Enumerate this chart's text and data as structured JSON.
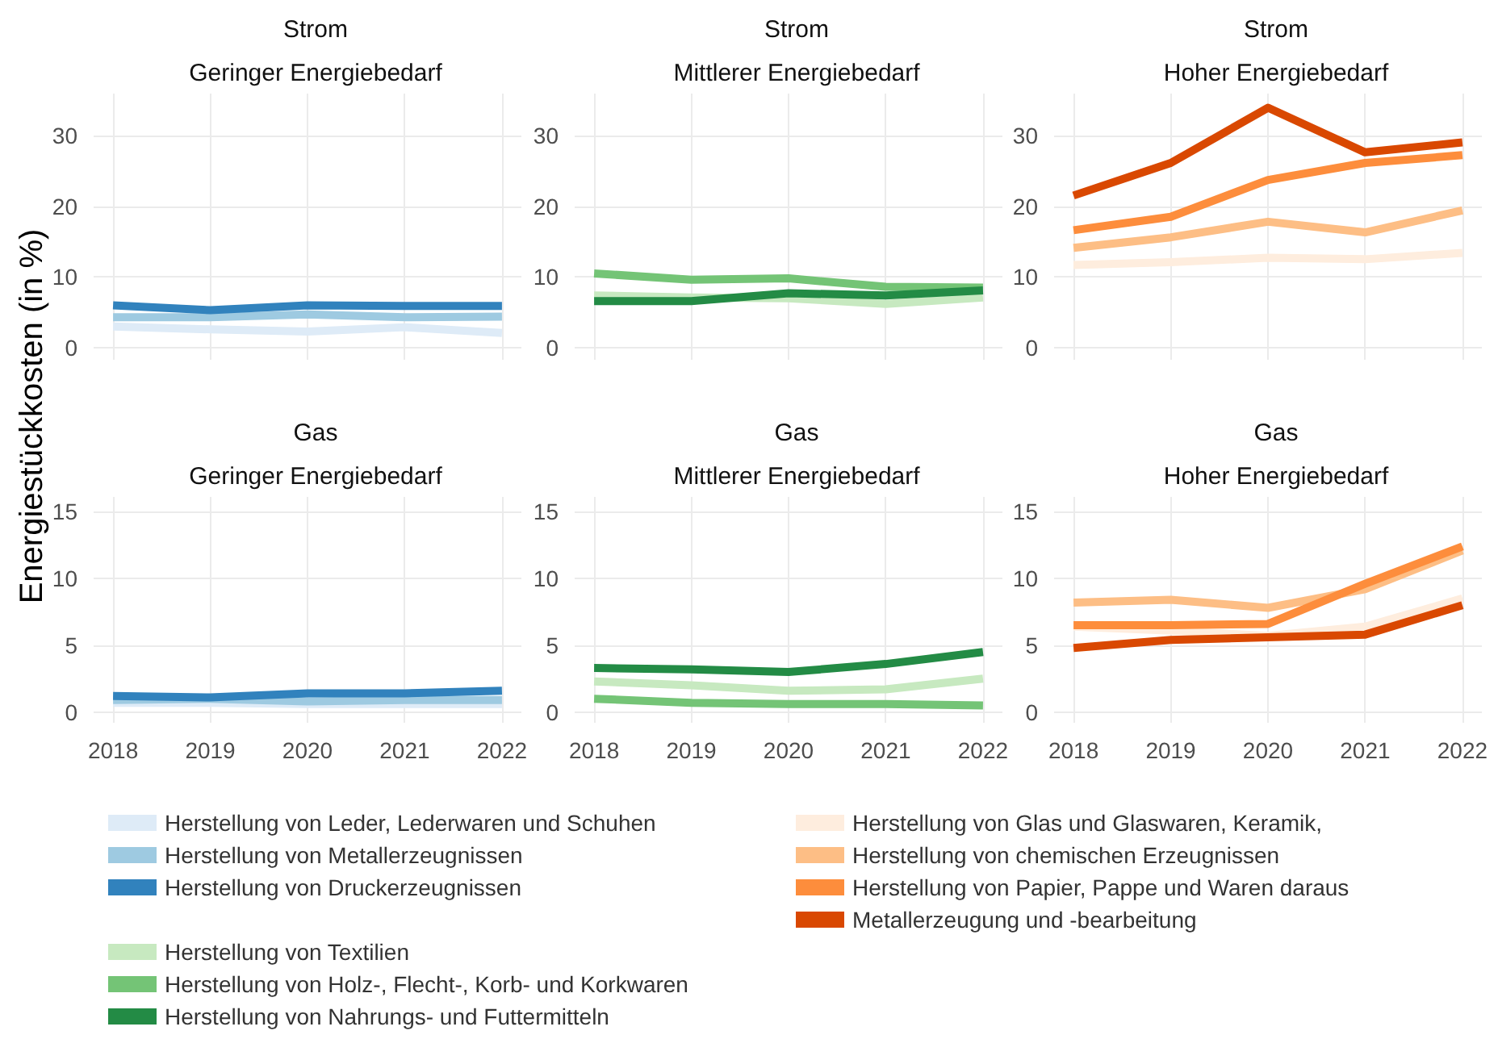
{
  "chart_data": [
    {
      "type": "line",
      "title": "Strom",
      "subtitle": "Geringer Energiebedarf",
      "ylabel": "Energiestückkosten (in %)",
      "x": [
        2018,
        2019,
        2020,
        2021,
        2022
      ],
      "xlim": [
        2017.8,
        2022.2
      ],
      "xticks": [
        2018,
        2019,
        2020,
        2021,
        2022
      ],
      "ylim": [
        -1.7,
        35.9
      ],
      "yticks": [
        0,
        10,
        20,
        30
      ],
      "grid": true,
      "legend": "bottom",
      "tick_labels": "y",
      "series": [
        {
          "name": "Herstellung von Leder, Lederwaren und Schuhen",
          "color": "#deebf7",
          "values": [
            3.0,
            2.6,
            2.3,
            2.9,
            2.1
          ]
        },
        {
          "name": "Herstellung von Metallerzeugnissen",
          "color": "#9ecae1",
          "values": [
            4.3,
            4.3,
            4.7,
            4.3,
            4.4
          ]
        },
        {
          "name": "Herstellung von Druckerzeugnissen",
          "color": "#3182bd",
          "values": [
            6.0,
            5.3,
            6.0,
            5.9,
            5.9
          ]
        }
      ]
    },
    {
      "type": "line",
      "title": "Strom",
      "subtitle": "Mittlerer Energiebedarf",
      "x": [
        2018,
        2019,
        2020,
        2021,
        2022
      ],
      "xlim": [
        2017.8,
        2022.2
      ],
      "xticks": [
        2018,
        2019,
        2020,
        2021,
        2022
      ],
      "ylim": [
        -1.7,
        35.9
      ],
      "yticks": [
        0,
        10,
        20,
        30
      ],
      "grid": true,
      "legend": "bottom",
      "tick_labels": "y",
      "series": [
        {
          "name": "Herstellung von Textilien",
          "color": "#c7e9c0",
          "values": [
            7.4,
            7.1,
            7.0,
            6.2,
            7.1
          ]
        },
        {
          "name": "Herstellung von Holz-, Flecht-, Korb- und Korkwaren",
          "color": "#74c476",
          "values": [
            10.5,
            9.6,
            9.8,
            8.6,
            8.5
          ]
        },
        {
          "name": "Herstellung von Nahrungs- und Futtermitteln",
          "color": "#238b45",
          "values": [
            6.6,
            6.6,
            7.7,
            7.4,
            8.1
          ]
        }
      ]
    },
    {
      "type": "line",
      "title": "Strom",
      "subtitle": "Hoher Energiebedarf",
      "x": [
        2018,
        2019,
        2020,
        2021,
        2022
      ],
      "xlim": [
        2017.8,
        2022.2
      ],
      "xticks": [
        2018,
        2019,
        2020,
        2021,
        2022
      ],
      "ylim": [
        -1.7,
        35.9
      ],
      "yticks": [
        0,
        10,
        20,
        30
      ],
      "grid": true,
      "legend": "bottom",
      "tick_labels": "y",
      "series": [
        {
          "name": "Herstellung von Glas und Glaswaren, Keramik,",
          "color": "#feedde",
          "values": [
            11.7,
            12.1,
            12.7,
            12.5,
            13.4
          ]
        },
        {
          "name": "Herstellung von chemischen Erzeugnissen",
          "color": "#fdbe85",
          "values": [
            14.1,
            15.6,
            17.8,
            16.3,
            19.4
          ]
        },
        {
          "name": "Herstellung von Papier, Pappe und Waren daraus",
          "color": "#fd8d3c",
          "values": [
            16.6,
            18.5,
            23.7,
            26.1,
            27.2
          ]
        },
        {
          "name": "Metallerzeugung und -bearbeitung",
          "color": "#d94801",
          "values": [
            21.5,
            26.1,
            33.9,
            27.6,
            29.0
          ]
        }
      ]
    },
    {
      "type": "line",
      "title": "Gas",
      "subtitle": "Geringer Energiebedarf",
      "x": [
        2018,
        2019,
        2020,
        2021,
        2022
      ],
      "xlim": [
        2017.8,
        2022.2
      ],
      "xticks": [
        2018,
        2019,
        2020,
        2021,
        2022
      ],
      "ylim": [
        -0.8,
        16.1
      ],
      "yticks": [
        0,
        5,
        10,
        15
      ],
      "grid": true,
      "series": [
        {
          "color": "#deebf7",
          "values": [
            0.7,
            0.7,
            0.6,
            0.6,
            0.6
          ]
        },
        {
          "color": "#9ecae1",
          "values": [
            0.9,
            1.0,
            0.8,
            0.9,
            0.9
          ]
        },
        {
          "color": "#3182bd",
          "values": [
            1.2,
            1.1,
            1.4,
            1.4,
            1.6
          ]
        }
      ]
    },
    {
      "type": "line",
      "title": "Gas",
      "subtitle": "Mittlerer Energiebedarf",
      "x": [
        2018,
        2019,
        2020,
        2021,
        2022
      ],
      "xlim": [
        2017.8,
        2022.2
      ],
      "xticks": [
        2018,
        2019,
        2020,
        2021,
        2022
      ],
      "ylim": [
        -0.8,
        16.1
      ],
      "yticks": [
        0,
        5,
        10,
        15
      ],
      "grid": true,
      "series": [
        {
          "color": "#c7e9c0",
          "values": [
            2.3,
            2.0,
            1.6,
            1.7,
            2.5
          ]
        },
        {
          "color": "#74c476",
          "values": [
            1.0,
            0.7,
            0.6,
            0.6,
            0.5
          ]
        },
        {
          "color": "#238b45",
          "values": [
            3.3,
            3.2,
            3.0,
            3.6,
            4.5
          ]
        }
      ]
    },
    {
      "type": "line",
      "title": "Gas",
      "subtitle": "Hoher Energiebedarf",
      "x": [
        2018,
        2019,
        2020,
        2021,
        2022
      ],
      "xlim": [
        2017.8,
        2022.2
      ],
      "xticks": [
        2018,
        2019,
        2020,
        2021,
        2022
      ],
      "ylim": [
        -0.8,
        16.1
      ],
      "yticks": [
        0,
        5,
        10,
        15
      ],
      "grid": true,
      "series": [
        {
          "color": "#feedde",
          "values": [
            6.4,
            6.1,
            5.7,
            6.4,
            8.5
          ]
        },
        {
          "color": "#fdbe85",
          "values": [
            8.2,
            8.4,
            7.8,
            9.2,
            12.1
          ]
        },
        {
          "color": "#fd8d3c",
          "values": [
            6.5,
            6.5,
            6.6,
            9.6,
            12.4
          ]
        },
        {
          "color": "#d94801",
          "values": [
            4.8,
            5.4,
            5.6,
            5.8,
            8.0
          ]
        }
      ]
    }
  ]
}
